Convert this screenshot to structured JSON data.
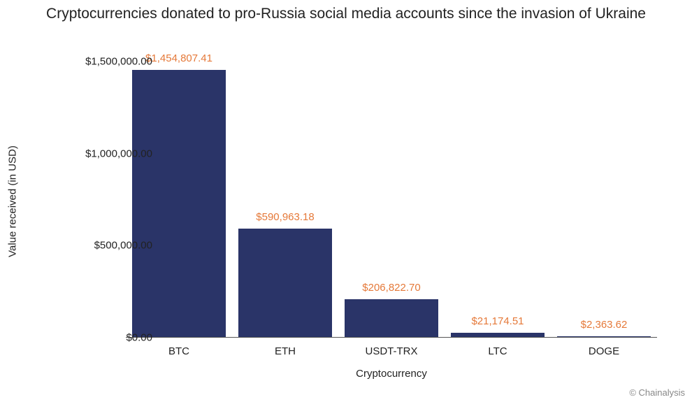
{
  "chart": {
    "type": "bar",
    "title": "Cryptocurrencies donated to pro-Russia social media accounts since the invasion of Ukraine",
    "title_fontsize": 21,
    "xlabel": "Cryptocurrency",
    "ylabel": "Value received (in USD)",
    "label_fontsize": 15,
    "series": [
      {
        "category": "BTC",
        "value": 1454807.41,
        "value_label": "$1,454,807.41"
      },
      {
        "category": "ETH",
        "value": 590963.18,
        "value_label": "$590,963.18"
      },
      {
        "category": "USDT-TRX",
        "value": 206822.7,
        "value_label": "$206,822.70"
      },
      {
        "category": "LTC",
        "value": 21174.51,
        "value_label": "$21,174.51"
      },
      {
        "category": "DOGE",
        "value": 2363.62,
        "value_label": "$2,363.62"
      }
    ],
    "bar_color": "#2a3468",
    "value_label_color": "#e57939",
    "ylim": [
      0,
      1500000
    ],
    "yticks": [
      {
        "value": 0,
        "label": "$0.00"
      },
      {
        "value": 500000,
        "label": "$500,000.00"
      },
      {
        "value": 1000000,
        "label": "$1,000,000.00"
      },
      {
        "value": 1500000,
        "label": "$1,500,000.00"
      }
    ],
    "background_color": "#ffffff",
    "bar_width": 0.88,
    "axis_color": "#555555",
    "tick_fontsize": 15
  },
  "attribution": "© Chainalysis"
}
